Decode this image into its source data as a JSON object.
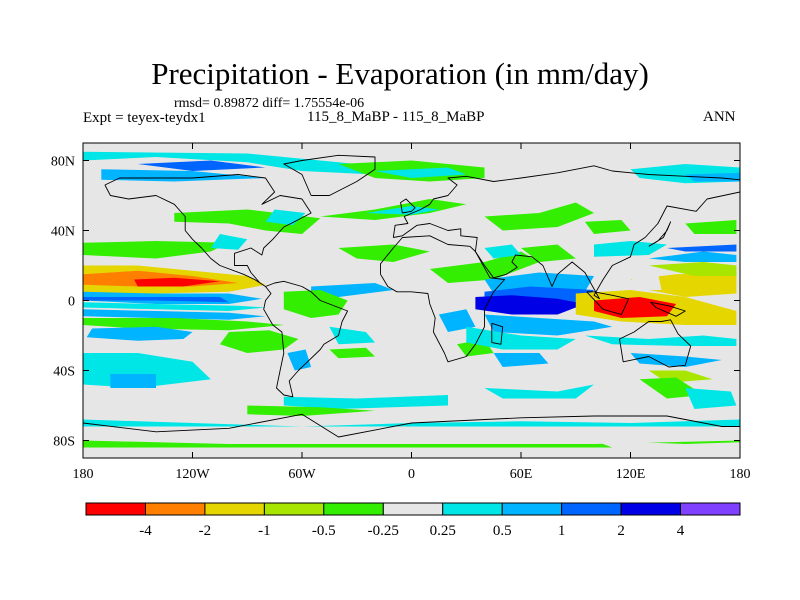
{
  "title": "Precipitation - Evaporation (in mm/day)",
  "stats": "rmsd= 0.89872 diff= 1.75554e-06",
  "experiment": "Expt = teyex-teydx1",
  "runs": "115_8_MaBP - 115_8_MaBP",
  "season": "ANN",
  "chart_data": {
    "type": "heatmap",
    "variable": "Precipitation - Evaporation difference",
    "units": "mm/day",
    "x_ticks": [
      "180",
      "120W",
      "60W",
      "0",
      "60E",
      "120E",
      "180"
    ],
    "x_tick_values": [
      -180,
      -120,
      -60,
      0,
      60,
      120,
      180
    ],
    "y_ticks": [
      "80N",
      "40N",
      "0",
      "40S",
      "80S"
    ],
    "y_tick_values": [
      80,
      40,
      0,
      -40,
      -80
    ],
    "xlim": [
      -180,
      180
    ],
    "ylim": [
      -90,
      90
    ],
    "colorbar": {
      "labels": [
        "-4",
        "-2",
        "-1",
        "-0.5",
        "-0.25",
        "0.25",
        "0.5",
        "1",
        "2",
        "4"
      ],
      "colors": [
        "#ff0000",
        "#ff8000",
        "#e6d600",
        "#a8e600",
        "#33ee00",
        "#e6e6e6",
        "#00e6e6",
        "#00b4ff",
        "#0064ff",
        "#0000e6",
        "#8040ff"
      ]
    },
    "background_color": "#e6e6e6",
    "features": [
      {
        "name": "central-pacific-negative-band",
        "lon": [
          -150,
          -100
        ],
        "lat": [
          6,
          14
        ],
        "value": -4,
        "color": "#ff0000"
      },
      {
        "name": "north-pacific-orange-band",
        "lon": [
          -180,
          -80
        ],
        "lat": [
          4,
          20
        ],
        "value": -2,
        "color": "#ff8000"
      },
      {
        "name": "west-pacific-negative-core",
        "lon": [
          100,
          140
        ],
        "lat": [
          -10,
          0
        ],
        "value": -4,
        "color": "#ff0000"
      },
      {
        "name": "west-pacific-orange",
        "lon": [
          88,
          178
        ],
        "lat": [
          -14,
          6
        ],
        "value": -2,
        "color": "#ff8000"
      },
      {
        "name": "indian-ocean-positive-band",
        "lon": [
          40,
          100
        ],
        "lat": [
          -10,
          5
        ],
        "value": 2,
        "color": "#0064ff"
      },
      {
        "name": "tropical-pacific-blue-bands",
        "lon": [
          -180,
          -80
        ],
        "lat": [
          -12,
          6
        ],
        "value": 1,
        "color": "#00b4ff"
      },
      {
        "name": "arctic-variable-zone",
        "lon": [
          -180,
          180
        ],
        "lat": [
          60,
          85
        ],
        "value": 0.5,
        "color": "#00e6e6"
      }
    ]
  }
}
